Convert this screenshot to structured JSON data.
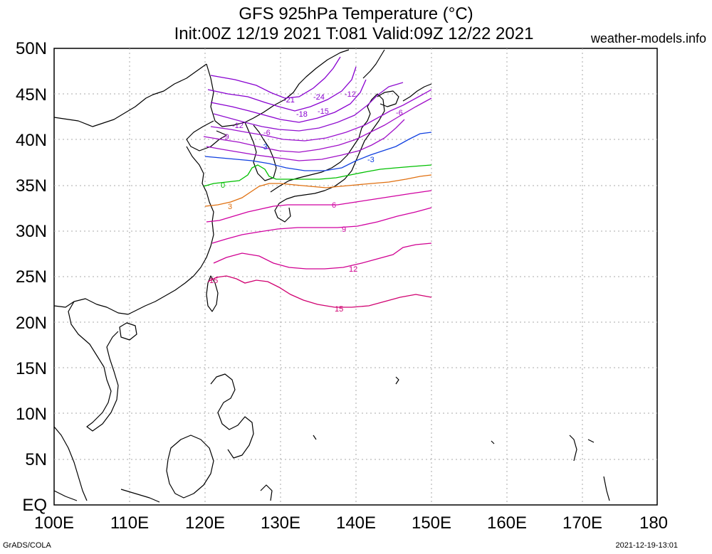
{
  "title_line1": "GFS 925hPa Temperature (°C)",
  "title_line2": "Init:00Z 12/19 2021 T:081 Valid:09Z 12/22 2021",
  "site": "weather-models.info",
  "footer_left": "GrADS/COLA",
  "footer_right": "2021-12-19-13:01",
  "lat_labels": [
    "50N",
    "45N",
    "40N",
    "35N",
    "30N",
    "25N",
    "20N",
    "15N",
    "10N",
    "5N",
    "EQ"
  ],
  "lon_labels": [
    "100E",
    "110E",
    "120E",
    "130E",
    "140E",
    "150E",
    "160E",
    "170E",
    "180"
  ],
  "contour_colors": {
    "-24": "#8800d0",
    "-21": "#8800d0",
    "-18": "#8800d0",
    "-15": "#9010d0",
    "-12": "#9a10d0",
    "-9": "#a010c8",
    "-6": "#a010c8",
    "-3": "#1040e0",
    "0": "#00c000",
    "3": "#e07010",
    "6": "#d000a0",
    "9": "#d000a0",
    "12": "#d00090",
    "15": "#d00070"
  },
  "contour_labels": [
    "-24",
    "-21",
    "-18",
    "-15",
    "-12",
    "-12",
    "-9",
    "-6",
    "-6",
    "-3",
    "-3",
    "0",
    "3",
    "6",
    "9",
    "12",
    "15",
    "15"
  ]
}
